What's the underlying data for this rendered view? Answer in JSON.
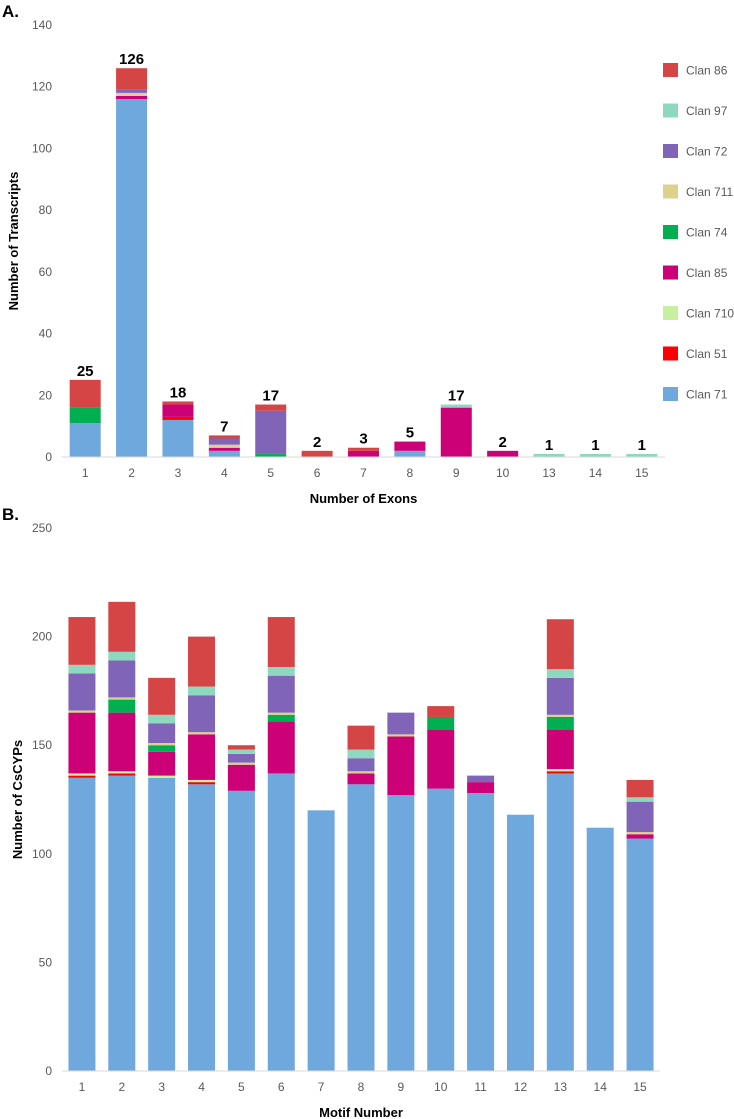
{
  "chart_data": [
    {
      "type": "bar",
      "stacked": true,
      "panel_label": "A.",
      "xlabel": "Number of Exons",
      "ylabel": "Number of Transcripts",
      "ylim": [
        0,
        140
      ],
      "yticks": [
        0,
        20,
        40,
        60,
        80,
        100,
        120,
        140
      ],
      "categories": [
        "1",
        "2",
        "3",
        "4",
        "5",
        "6",
        "7",
        "8",
        "9",
        "10",
        "13",
        "14",
        "15"
      ],
      "totals": [
        25,
        126,
        18,
        7,
        17,
        2,
        3,
        5,
        17,
        2,
        1,
        1,
        1
      ],
      "legend": {
        "placement": "right",
        "order": [
          "Clan 86",
          "Clan 97",
          "Clan 72",
          "Clan 711",
          "Clan 74",
          "Clan 85",
          "Clan 710",
          "Clan 51",
          "Clan 71"
        ]
      },
      "series": [
        {
          "name": "Clan 71",
          "color": "#6fa8dc",
          "values": [
            11,
            116,
            12,
            2,
            0,
            0,
            0,
            2,
            0,
            0,
            0,
            0,
            0
          ]
        },
        {
          "name": "Clan 51",
          "color": "#ff0000",
          "values": [
            0,
            0,
            1,
            0,
            0,
            0,
            0,
            0,
            0,
            0,
            0,
            0,
            0
          ]
        },
        {
          "name": "Clan 710",
          "color": "#c6f0a0",
          "values": [
            0,
            0,
            0,
            0,
            0,
            0,
            0,
            0,
            0,
            0,
            0,
            0,
            0
          ]
        },
        {
          "name": "Clan 85",
          "color": "#cc0077",
          "values": [
            0,
            1,
            4,
            1,
            0,
            0,
            2,
            3,
            16,
            2,
            0,
            0,
            0
          ]
        },
        {
          "name": "Clan 74",
          "color": "#00b050",
          "values": [
            5,
            0,
            0,
            0,
            1,
            0,
            0,
            0,
            0,
            0,
            0,
            0,
            0
          ]
        },
        {
          "name": "Clan 711",
          "color": "#dcd28c",
          "values": [
            0,
            1,
            0,
            1,
            0,
            0,
            0,
            0,
            0,
            0,
            0,
            0,
            0
          ]
        },
        {
          "name": "Clan 72",
          "color": "#8064b8",
          "values": [
            0,
            1,
            0,
            2,
            14,
            0,
            0,
            0,
            0,
            0,
            0,
            0,
            0
          ]
        },
        {
          "name": "Clan 97",
          "color": "#8ed8c0",
          "values": [
            0,
            0,
            0,
            0,
            0,
            0,
            0,
            0,
            1,
            0,
            1,
            1,
            1
          ]
        },
        {
          "name": "Clan 86",
          "color": "#d64545",
          "values": [
            9,
            7,
            1,
            1,
            2,
            2,
            1,
            0,
            0,
            0,
            0,
            0,
            0
          ]
        }
      ]
    },
    {
      "type": "bar",
      "stacked": true,
      "panel_label": "B.",
      "xlabel": "Motif Number",
      "ylabel": "Number of CsCYPs",
      "ylim": [
        0,
        250
      ],
      "yticks": [
        0,
        50,
        100,
        150,
        200,
        250
      ],
      "categories": [
        "1",
        "2",
        "3",
        "4",
        "5",
        "6",
        "7",
        "8",
        "9",
        "10",
        "11",
        "12",
        "13",
        "14",
        "15"
      ],
      "series": [
        {
          "name": "Clan 71",
          "color": "#6fa8dc",
          "values": [
            135,
            136,
            135,
            132,
            129,
            137,
            120,
            132,
            127,
            130,
            128,
            118,
            137,
            112,
            107
          ]
        },
        {
          "name": "Clan 51",
          "color": "#ff0000",
          "values": [
            1,
            1,
            0,
            1,
            0,
            0,
            0,
            0,
            0,
            0,
            0,
            0,
            1,
            0,
            0
          ]
        },
        {
          "name": "Clan 710",
          "color": "#c6f0a0",
          "values": [
            1,
            1,
            1,
            1,
            0,
            0,
            0,
            0,
            0,
            0,
            0,
            0,
            1,
            0,
            0
          ]
        },
        {
          "name": "Clan 85",
          "color": "#cc0077",
          "values": [
            28,
            27,
            11,
            21,
            12,
            24,
            0,
            5,
            27,
            27,
            5,
            0,
            18,
            0,
            2
          ]
        },
        {
          "name": "Clan 74",
          "color": "#00b050",
          "values": [
            0,
            6,
            3,
            0,
            0,
            3,
            0,
            0,
            0,
            6,
            0,
            0,
            6,
            0,
            0
          ]
        },
        {
          "name": "Clan 711",
          "color": "#dcd28c",
          "values": [
            1,
            1,
            1,
            1,
            1,
            1,
            0,
            1,
            1,
            0,
            0,
            0,
            1,
            0,
            1
          ]
        },
        {
          "name": "Clan 72",
          "color": "#8064b8",
          "values": [
            17,
            17,
            9,
            17,
            4,
            17,
            0,
            6,
            10,
            0,
            3,
            0,
            17,
            0,
            14
          ]
        },
        {
          "name": "Clan 97",
          "color": "#8ed8c0",
          "values": [
            4,
            4,
            4,
            4,
            2,
            4,
            0,
            4,
            0,
            0,
            0,
            0,
            4,
            0,
            2
          ]
        },
        {
          "name": "Clan 86",
          "color": "#d64545",
          "values": [
            22,
            23,
            17,
            23,
            2,
            23,
            0,
            11,
            0,
            5,
            0,
            0,
            23,
            0,
            8
          ]
        }
      ]
    }
  ]
}
